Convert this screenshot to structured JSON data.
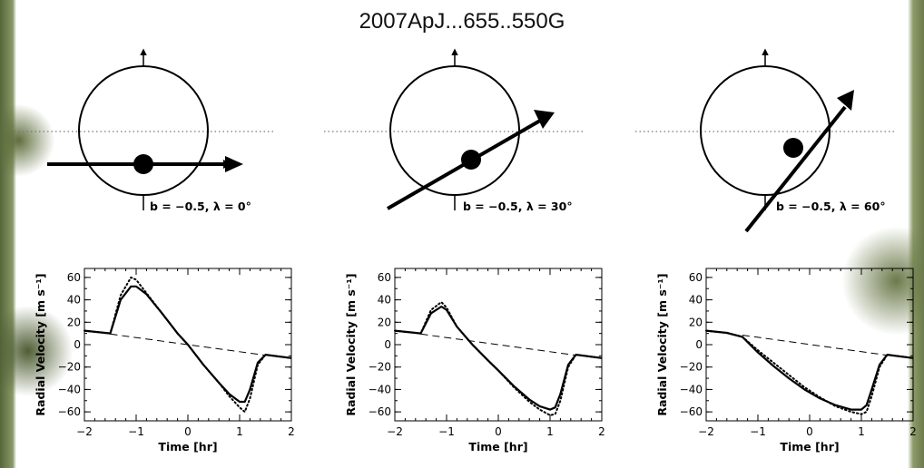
{
  "title": "2007ApJ...655..550G",
  "panels": [
    {
      "b": "-0.5",
      "lambda_deg": 0,
      "annotation": "b = −0.5, λ = 0°"
    },
    {
      "b": "-0.5",
      "lambda_deg": 30,
      "annotation": "b = −0.5, λ = 30°"
    },
    {
      "b": "-0.5",
      "lambda_deg": 60,
      "annotation": "b = −0.5, λ = 60°"
    }
  ],
  "chart_data": [
    {
      "type": "line",
      "xlabel": "Time [hr]",
      "ylabel": "Radial Velocity [m s⁻¹]",
      "xlim": [
        -2,
        2
      ],
      "ylim": [
        -68,
        68
      ],
      "xticks": [
        -2,
        -1,
        0,
        1,
        2
      ],
      "yticks": [
        60,
        40,
        20,
        0,
        -20,
        -40,
        -60
      ],
      "series": [
        {
          "style": "solid",
          "x": [
            -2,
            -1.6,
            -1.5,
            -1.3,
            -1.1,
            -1.0,
            -0.8,
            -0.5,
            -0.2,
            0,
            0.3,
            0.6,
            0.8,
            1.0,
            1.1,
            1.2,
            1.35,
            1.5,
            2
          ],
          "y": [
            12.5,
            10.5,
            10,
            40,
            52,
            52,
            45,
            28,
            10,
            0,
            -18,
            -34,
            -44,
            -51,
            -51,
            -40,
            -16,
            -9,
            -12
          ]
        },
        {
          "style": "dotted",
          "x": [
            -2,
            -1.6,
            -1.5,
            -1.3,
            -1.1,
            -1.0,
            -0.8,
            -0.5,
            -0.2,
            0,
            0.3,
            0.6,
            0.8,
            1.0,
            1.1,
            1.2,
            1.35,
            1.5,
            2
          ],
          "y": [
            12.5,
            10.5,
            10,
            44,
            60,
            58,
            46,
            28,
            10,
            0,
            -18,
            -34,
            -46,
            -56,
            -60,
            -48,
            -18,
            -9,
            -12
          ]
        },
        {
          "style": "dashed",
          "x": [
            -1.5,
            1.5
          ],
          "y": [
            9.5,
            -9.5
          ]
        }
      ]
    },
    {
      "type": "line",
      "xlabel": "Time [hr]",
      "ylabel": "Radial Velocity [m s⁻¹]",
      "xlim": [
        -2,
        2
      ],
      "ylim": [
        -68,
        68
      ],
      "xticks": [
        -2,
        -1,
        0,
        1,
        2
      ],
      "yticks": [
        60,
        40,
        20,
        0,
        -20,
        -40,
        -60
      ],
      "series": [
        {
          "style": "solid",
          "x": [
            -2,
            -1.6,
            -1.5,
            -1.3,
            -1.1,
            -1.0,
            -0.8,
            -0.5,
            -0.2,
            0,
            0.3,
            0.6,
            0.8,
            1.0,
            1.1,
            1.2,
            1.35,
            1.5,
            2
          ],
          "y": [
            12.5,
            10.5,
            10,
            28,
            34,
            31,
            16,
            0,
            -14,
            -23,
            -37,
            -49,
            -55,
            -58,
            -56,
            -44,
            -18,
            -9,
            -12
          ]
        },
        {
          "style": "dotted",
          "x": [
            -2,
            -1.6,
            -1.5,
            -1.3,
            -1.1,
            -1.0,
            -0.8,
            -0.5,
            -0.2,
            0,
            0.3,
            0.6,
            0.8,
            1.0,
            1.1,
            1.2,
            1.35,
            1.5,
            2
          ],
          "y": [
            12.5,
            10.5,
            10,
            31,
            38,
            33,
            16,
            0,
            -14,
            -23,
            -38,
            -51,
            -58,
            -63,
            -62,
            -50,
            -20,
            -9,
            -12
          ]
        },
        {
          "style": "dashed",
          "x": [
            -1.5,
            1.5
          ],
          "y": [
            9.5,
            -9.5
          ]
        }
      ]
    },
    {
      "type": "line",
      "xlabel": "Time [hr]",
      "ylabel": "Radial Velocity [m s⁻¹]",
      "xlim": [
        -2,
        2
      ],
      "ylim": [
        -68,
        68
      ],
      "xticks": [
        -2,
        -1,
        0,
        1,
        2
      ],
      "yticks": [
        60,
        40,
        20,
        0,
        -20,
        -40,
        -60
      ],
      "series": [
        {
          "style": "solid",
          "x": [
            -2,
            -1.6,
            -1.3,
            -1.0,
            -0.7,
            -0.4,
            -0.1,
            0.2,
            0.5,
            0.8,
            1.0,
            1.1,
            1.2,
            1.35,
            1.5,
            2
          ],
          "y": [
            12.5,
            10.5,
            7,
            -7,
            -19,
            -30,
            -40,
            -48,
            -54,
            -58,
            -58,
            -54,
            -40,
            -18,
            -9,
            -12
          ]
        },
        {
          "style": "dotted",
          "x": [
            -2,
            -1.6,
            -1.3,
            -1.0,
            -0.7,
            -0.4,
            -0.1,
            0.2,
            0.5,
            0.8,
            1.0,
            1.1,
            1.2,
            1.35,
            1.5,
            2
          ],
          "y": [
            12.5,
            10.5,
            7,
            -5,
            -16,
            -27,
            -38,
            -47,
            -55,
            -60,
            -62,
            -60,
            -46,
            -20,
            -9,
            -12
          ]
        },
        {
          "style": "dashed",
          "x": [
            -1.3,
            1.5
          ],
          "y": [
            8.5,
            -9.5
          ]
        }
      ]
    }
  ]
}
